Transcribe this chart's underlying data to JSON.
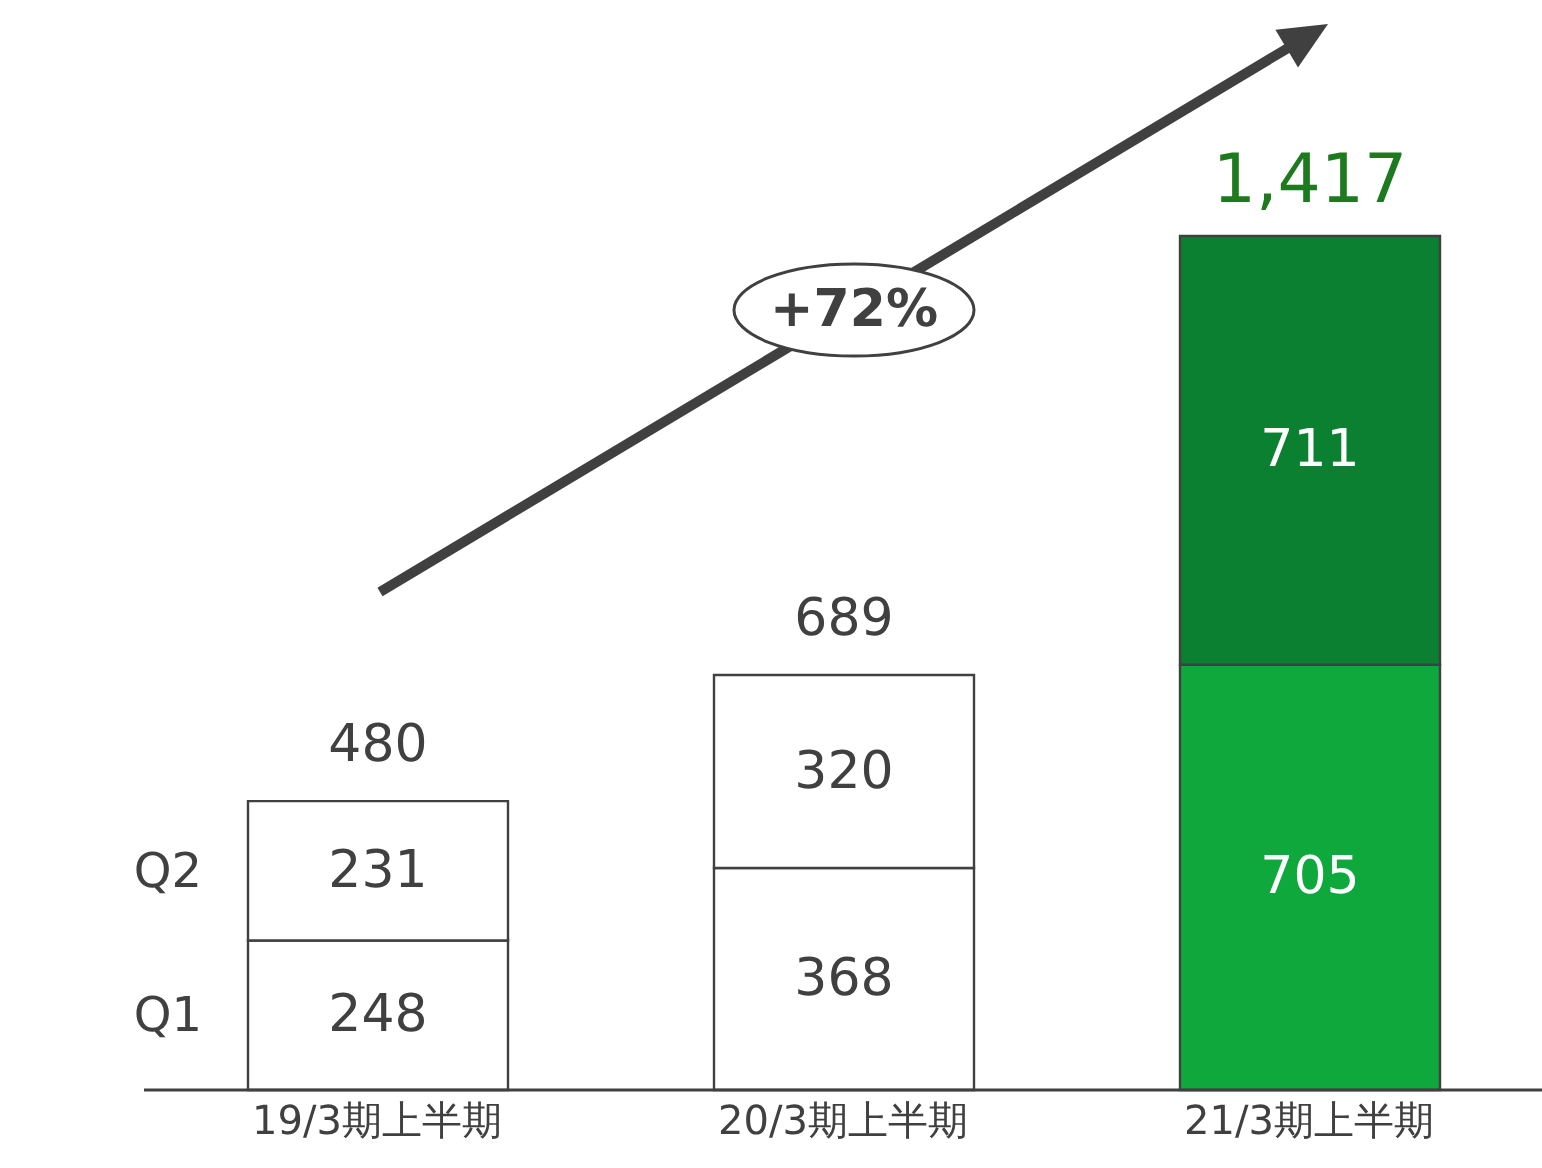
{
  "chart_data": {
    "type": "bar",
    "stacked": true,
    "categories": [
      "19/3期上半期",
      "20/3期上半期",
      "21/3期上半期"
    ],
    "series": [
      {
        "name": "Q1",
        "colors": [
          "#ffffff",
          "#ffffff",
          "#0fa83c"
        ],
        "values": [
          248,
          368,
          705
        ]
      },
      {
        "name": "Q2",
        "colors": [
          "#ffffff",
          "#ffffff",
          "#0b8030"
        ],
        "values": [
          231,
          320,
          711
        ]
      }
    ],
    "data_labels": true,
    "totals": [
      "480",
      "689",
      "1,417"
    ],
    "annotations": [
      "+72%"
    ]
  }
}
